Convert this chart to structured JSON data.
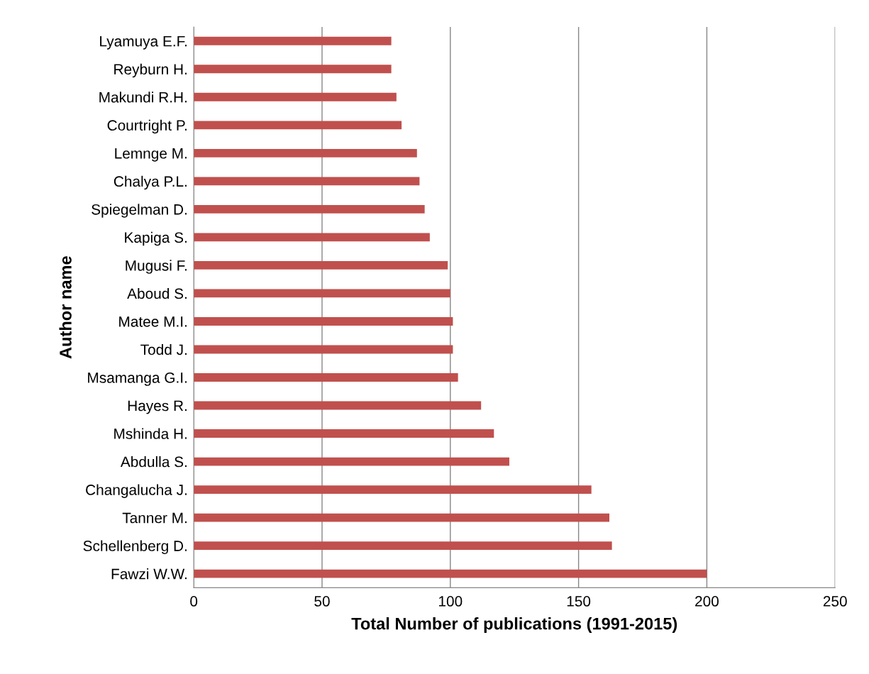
{
  "chart_data": {
    "type": "bar",
    "orientation": "horizontal",
    "xlabel": "Total Number of publications (1991-2015)",
    "ylabel": "Author name",
    "categories": [
      "Lyamuya E.F.",
      "Reyburn H.",
      "Makundi R.H.",
      "Courtright P.",
      "Lemnge M.",
      "Chalya P.L.",
      "Spiegelman D.",
      "Kapiga S.",
      "Mugusi F.",
      "Aboud S.",
      "Matee M.I.",
      "Todd J.",
      "Msamanga G.I.",
      "Hayes R.",
      "Mshinda H.",
      "Abdulla S.",
      "Changalucha J.",
      "Tanner M.",
      "Schellenberg D.",
      "Fawzi W.W."
    ],
    "values": [
      77,
      77,
      79,
      81,
      87,
      88,
      90,
      92,
      99,
      100,
      101,
      101,
      103,
      112,
      117,
      123,
      155,
      162,
      163,
      200
    ],
    "color": "#c0504d",
    "xlim": [
      0,
      250
    ],
    "xticks": [
      0,
      50,
      100,
      150,
      200,
      250
    ],
    "grid": "x",
    "legend": false
  }
}
